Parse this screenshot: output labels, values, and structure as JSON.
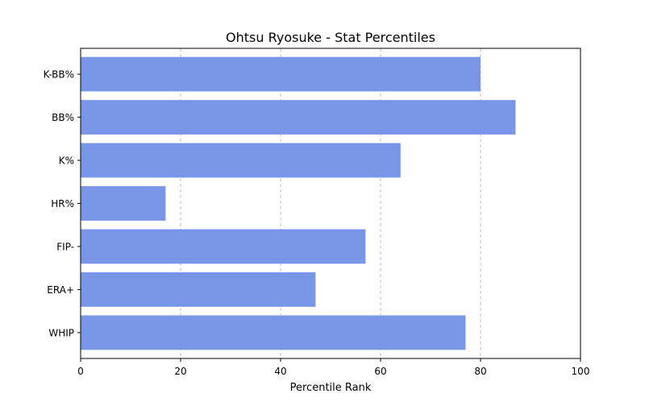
{
  "chart_data": {
    "type": "bar",
    "orientation": "horizontal",
    "title": "Ohtsu Ryosuke - Stat Percentiles",
    "xlabel": "Percentile Rank",
    "ylabel": "",
    "xlim": [
      0,
      100
    ],
    "xticks": [
      0,
      20,
      40,
      60,
      80,
      100
    ],
    "categories": [
      "K-BB%",
      "BB%",
      "K%",
      "HR%",
      "FIP-",
      "ERA+",
      "WHIP"
    ],
    "values": [
      80,
      87,
      64,
      17,
      57,
      47,
      77
    ],
    "bar_color": "#7895E8",
    "grid": "x-axis dashed",
    "legend": "none"
  }
}
